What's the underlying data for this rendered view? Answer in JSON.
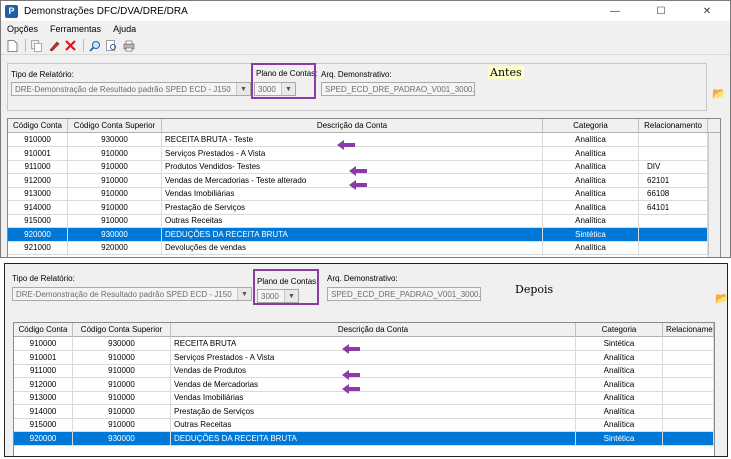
{
  "window": {
    "title": "Demonstrações DFC/DVA/DRE/DRA",
    "app_icon": "P",
    "controls": [
      "—",
      "☐",
      "✕"
    ]
  },
  "menu": [
    "Opções",
    "Ferramentas",
    "Ajuda"
  ],
  "toolbar": {
    "icons": [
      "new-document-icon",
      "copy-icon",
      "edit-icon",
      "delete-icon",
      "search-icon",
      "find-icon",
      "print-icon"
    ]
  },
  "antes": {
    "note": "Antes",
    "tipo_label": "Tipo de Relatório:",
    "tipo_value": "DRE-Demonstração de Resultado padrão SPED ECD - J150",
    "plano_label": "Plano de Contas:",
    "plano_value": "3000",
    "arq_label": "Arq. Demonstrativo:",
    "arq_value": "SPED_ECD_DRE_PADRAO_V001_3000.DMB",
    "columns": [
      "Código Conta",
      "Código Conta Superior",
      "Descrição da Conta",
      "Categoria",
      "Relacionamento"
    ],
    "rows": [
      {
        "codigo": "910000",
        "superior": "930000",
        "descricao": "RECEITA BRUTA - Teste",
        "categoria": "Analítica",
        "rel": ""
      },
      {
        "codigo": "910001",
        "superior": "910000",
        "descricao": "Serviços Prestados - A Vista",
        "categoria": "Analítica",
        "rel": ""
      },
      {
        "codigo": "911000",
        "superior": "910000",
        "descricao": "Produtos Vendidos- Testes",
        "categoria": "Analítica",
        "rel": "DIV"
      },
      {
        "codigo": "912000",
        "superior": "910000",
        "descricao": "Vendas de Mercadorias - Teste alterado",
        "categoria": "Analítica",
        "rel": "62101"
      },
      {
        "codigo": "913000",
        "superior": "910000",
        "descricao": "Vendas Imobiliárias",
        "categoria": "Analítica",
        "rel": "66108"
      },
      {
        "codigo": "914000",
        "superior": "910000",
        "descricao": "Prestação de Serviços",
        "categoria": "Analítica",
        "rel": "64101"
      },
      {
        "codigo": "915000",
        "superior": "910000",
        "descricao": "Outras Receitas",
        "categoria": "Analítica",
        "rel": ""
      },
      {
        "codigo": "920000",
        "superior": "930000",
        "descricao": "DEDUÇÕES DA RECEITA BRUTA",
        "categoria": "Sintética",
        "rel": ""
      },
      {
        "codigo": "921000",
        "superior": "920000",
        "descricao": "Devoluções de vendas",
        "categoria": "Analítica",
        "rel": ""
      }
    ]
  },
  "depois": {
    "note": "Depois",
    "tipo_label": "Tipo de Relatório:",
    "tipo_value": "DRE-Demonstração de Resultado padrão SPED ECD - J150",
    "plano_label": "Plano de Contas:",
    "plano_value": "3000",
    "arq_label": "Arq. Demonstrativo:",
    "arq_value": "SPED_ECD_DRE_PADRAO_V001_3000.DMB",
    "columns": [
      "Código Conta",
      "Código Conta Superior",
      "Descrição da Conta",
      "Categoria",
      "Relacionamento"
    ],
    "rows": [
      {
        "codigo": "910000",
        "superior": "930000",
        "descricao": "RECEITA BRUTA",
        "categoria": "Sintética",
        "rel": ""
      },
      {
        "codigo": "910001",
        "superior": "910000",
        "descricao": "Serviços Prestados - A Vista",
        "categoria": "Analítica",
        "rel": ""
      },
      {
        "codigo": "911000",
        "superior": "910000",
        "descricao": "Vendas de Produtos",
        "categoria": "Analítica",
        "rel": ""
      },
      {
        "codigo": "912000",
        "superior": "910000",
        "descricao": "Vendas de Mercadorias",
        "categoria": "Analítica",
        "rel": ""
      },
      {
        "codigo": "913000",
        "superior": "910000",
        "descricao": "Vendas Imobiliárias",
        "categoria": "Analítica",
        "rel": ""
      },
      {
        "codigo": "914000",
        "superior": "910000",
        "descricao": "Prestação de Serviços",
        "categoria": "Analítica",
        "rel": ""
      },
      {
        "codigo": "915000",
        "superior": "910000",
        "descricao": "Outras Receitas",
        "categoria": "Analítica",
        "rel": ""
      },
      {
        "codigo": "920000",
        "superior": "930000",
        "descricao": "DEDUÇÕES DA RECEITA BRUTA",
        "categoria": "Sintética",
        "rel": ""
      }
    ]
  },
  "colors": {
    "highlight": "#8c3aa8",
    "selection": "#0078d7",
    "note_bg": "#ffffcc"
  }
}
